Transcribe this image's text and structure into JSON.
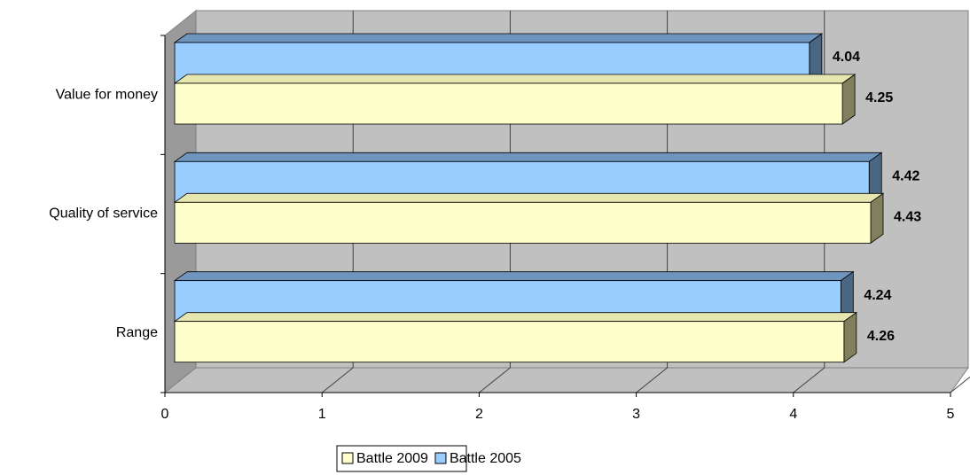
{
  "chart_data": {
    "type": "bar3d_horizontal",
    "categories": [
      "Value for money",
      "Quality of service",
      "Range"
    ],
    "series": [
      {
        "name": "Battle 2009",
        "color": "#ffffcc",
        "values": [
          4.25,
          4.43,
          4.26
        ]
      },
      {
        "name": "Battle 2005",
        "color": "#99ccff",
        "values": [
          4.04,
          4.42,
          4.24
        ]
      }
    ],
    "xlim": [
      0,
      5
    ],
    "xticks": [
      0,
      1,
      2,
      3,
      4,
      5
    ],
    "grid": true,
    "legend": "bottom"
  }
}
